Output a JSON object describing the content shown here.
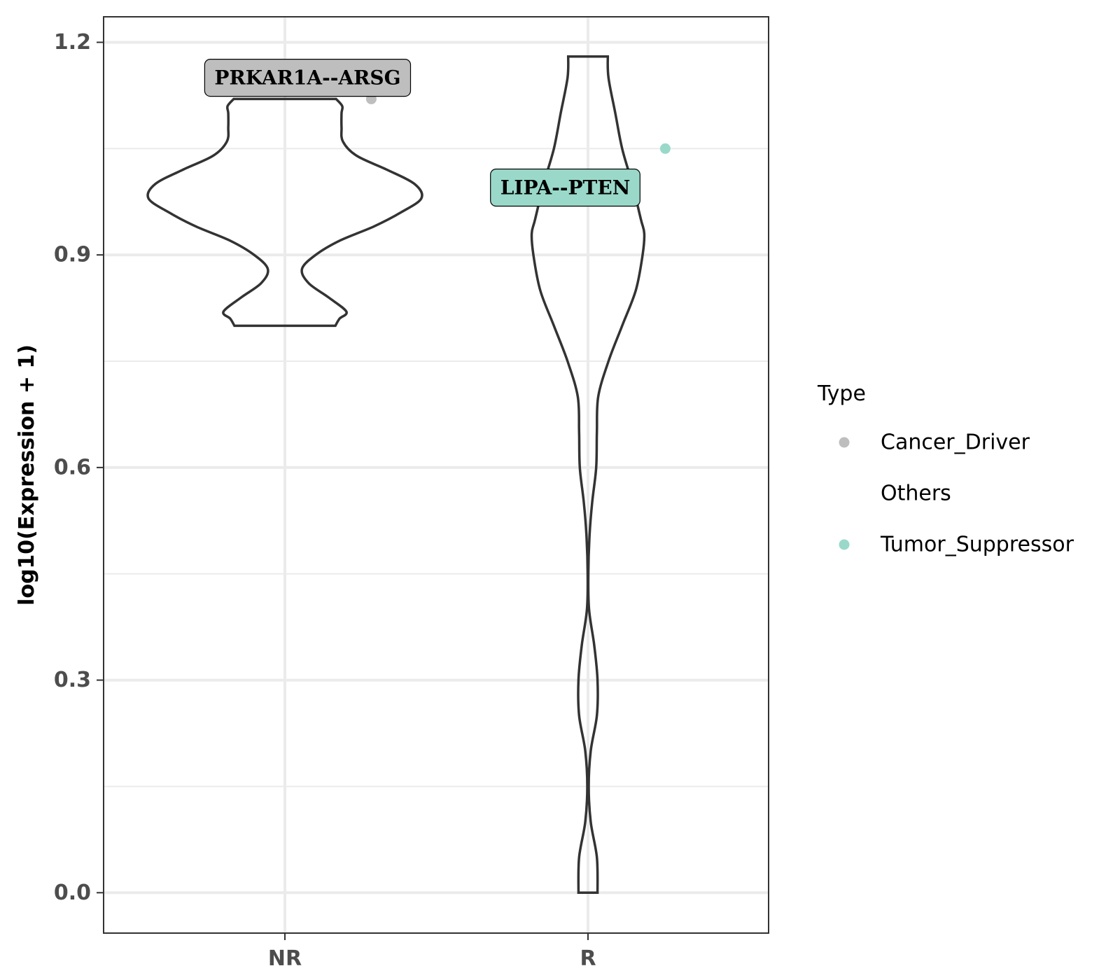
{
  "chart_data": {
    "type": "violin",
    "ylabel": "log10(Expression + 1)",
    "xlabel": "",
    "categories": [
      "NR",
      "R"
    ],
    "ylim": [
      -0.057,
      1.236
    ],
    "y_ticks": [
      0.0,
      0.3,
      0.6,
      0.9,
      1.2
    ],
    "y_tick_labels": [
      "0.0",
      "0.3",
      "0.6",
      "0.9",
      "1.2"
    ],
    "grid": true,
    "violins": [
      {
        "category": "NR",
        "ymin": 0.8,
        "ymax": 1.12,
        "density": [
          [
            0.8,
            0.148
          ],
          [
            0.81,
            0.16
          ],
          [
            0.82,
            0.18
          ],
          [
            0.84,
            0.128
          ],
          [
            0.86,
            0.07
          ],
          [
            0.88,
            0.05
          ],
          [
            0.9,
            0.09
          ],
          [
            0.92,
            0.16
          ],
          [
            0.94,
            0.26
          ],
          [
            0.96,
            0.34
          ],
          [
            0.98,
            0.4
          ],
          [
            1.0,
            0.38
          ],
          [
            1.02,
            0.3
          ],
          [
            1.04,
            0.21
          ],
          [
            1.06,
            0.17
          ],
          [
            1.08,
            0.166
          ],
          [
            1.1,
            0.166
          ],
          [
            1.11,
            0.168
          ],
          [
            1.12,
            0.15
          ]
        ]
      },
      {
        "category": "R",
        "ymin": 0.0,
        "ymax": 1.18,
        "density": [
          [
            0.0,
            0.028
          ],
          [
            0.05,
            0.026
          ],
          [
            0.1,
            0.008
          ],
          [
            0.15,
            0.002
          ],
          [
            0.2,
            0.008
          ],
          [
            0.25,
            0.026
          ],
          [
            0.3,
            0.028
          ],
          [
            0.35,
            0.018
          ],
          [
            0.4,
            0.003
          ],
          [
            0.45,
            0.001
          ],
          [
            0.5,
            0.004
          ],
          [
            0.55,
            0.012
          ],
          [
            0.6,
            0.024
          ],
          [
            0.65,
            0.026
          ],
          [
            0.7,
            0.03
          ],
          [
            0.75,
            0.06
          ],
          [
            0.8,
            0.1
          ],
          [
            0.85,
            0.14
          ],
          [
            0.9,
            0.16
          ],
          [
            0.93,
            0.165
          ],
          [
            0.95,
            0.155
          ],
          [
            1.0,
            0.13
          ],
          [
            1.05,
            0.1
          ],
          [
            1.1,
            0.08
          ],
          [
            1.15,
            0.06
          ],
          [
            1.18,
            0.058
          ]
        ]
      }
    ],
    "points": [
      {
        "category": "NR",
        "x_offset": 0.285,
        "y": 1.12,
        "type": "Cancer_Driver"
      },
      {
        "category": "R",
        "x_offset": 0.255,
        "y": 1.05,
        "type": "Tumor_Suppressor"
      }
    ],
    "annotations": [
      {
        "text": "PRKAR1A--ARSG",
        "category": "NR",
        "x_offset": 0.075,
        "y": 1.15,
        "type": "Cancer_Driver"
      },
      {
        "text": "LIPA--PTEN",
        "category": "R",
        "x_offset": -0.075,
        "y": 0.995,
        "type": "Tumor_Suppressor"
      }
    ],
    "legend": {
      "title": "Type",
      "position": "right",
      "entries": [
        {
          "label": "Cancer_Driver",
          "color": "#bebebe",
          "shown": true
        },
        {
          "label": "Others",
          "color": "#ffffff",
          "shown": false
        },
        {
          "label": "Tumor_Suppressor",
          "color": "#9ad9c9",
          "shown": true
        }
      ]
    },
    "colors": {
      "Cancer_Driver": "#bebebe",
      "Tumor_Suppressor": "#9ad9c9",
      "violin_stroke": "#333333",
      "grid": "#ebebeb",
      "panel_border": "#333333"
    }
  }
}
